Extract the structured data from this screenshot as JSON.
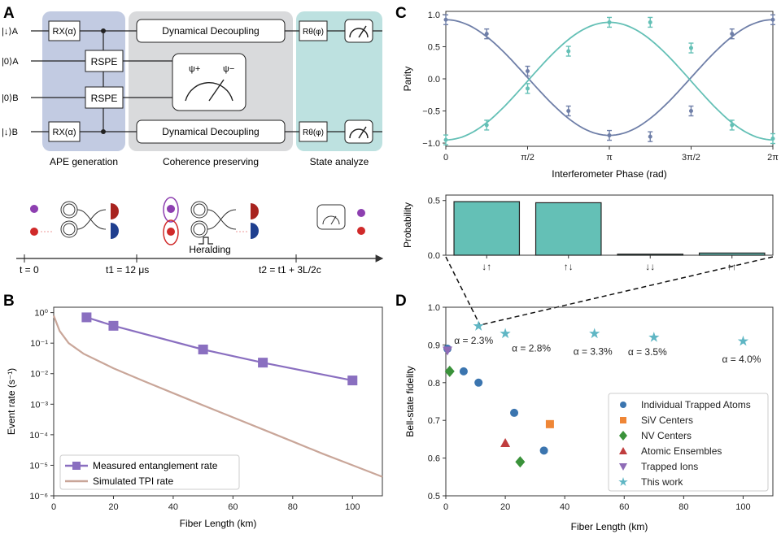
{
  "panels": {
    "A": {
      "letter": "A",
      "inputs": [
        "|↓⟩A",
        "|0⟩A",
        "|0⟩B",
        "|↓⟩B"
      ],
      "gate_rx": "RX(α)",
      "gate_rspe": "RSPE",
      "gate_dd": "Dynamical Decoupling",
      "gate_rtheta": "Rθ(φ)",
      "psi_plus": "ψ+",
      "psi_minus": "ψ−",
      "stage_labels": [
        "APE generation",
        "Coherence preserving",
        "State analyze"
      ],
      "heralding": "Heralding",
      "timeline": [
        "t = 0",
        "t1 = 12 μs",
        "t2 = t1 + 3L/2c"
      ]
    },
    "B": {
      "letter": "B",
      "xlabel": "Fiber Length (km)",
      "ylabel": "Event rate (s⁻¹)",
      "legend": [
        "Measured entanglement rate",
        "Simulated TPI rate"
      ]
    },
    "C": {
      "letter": "C"
    },
    "D": {
      "letter": "D"
    }
  },
  "chart_data": [
    {
      "id": "B",
      "type": "line",
      "yscale": "log",
      "xlabel": "Fiber Length (km)",
      "ylabel": "Event rate (s⁻¹)",
      "xlim": [
        0,
        110
      ],
      "ylim": [
        1e-06,
        1.5
      ],
      "xticks": [
        0,
        20,
        40,
        60,
        80,
        100
      ],
      "yticks": [
        1e-06,
        1e-05,
        0.0001,
        0.001,
        0.01,
        0.1,
        1
      ],
      "ytick_labels": [
        "10⁻⁶",
        "10⁻⁵",
        "10⁻⁴",
        "10⁻³",
        "10⁻²",
        "10⁻¹",
        "10⁰"
      ],
      "series": [
        {
          "name": "Measured entanglement rate",
          "color": "#8a6fc0",
          "marker": "square",
          "x": [
            11,
            20,
            50,
            70,
            100
          ],
          "y": [
            0.7,
            0.37,
            0.062,
            0.023,
            0.006
          ]
        },
        {
          "name": "Simulated TPI rate",
          "color": "#c9a699",
          "marker": "none",
          "x": [
            0,
            2,
            5,
            10,
            20,
            30,
            40,
            50,
            60,
            70,
            80,
            90,
            100,
            110
          ],
          "y": [
            0.8,
            0.25,
            0.1,
            0.045,
            0.015,
            0.0058,
            0.0023,
            0.00092,
            0.00037,
            0.00015,
            6e-05,
            2.4e-05,
            1e-05,
            4.2e-06
          ]
        }
      ],
      "legend_position": "lower-left"
    },
    {
      "id": "C-parity",
      "type": "line",
      "xlabel": "Interferometer Phase (rad)",
      "ylabel": "Parity",
      "xlim": [
        0,
        6.2832
      ],
      "ylim": [
        -1.05,
        1.05
      ],
      "xticks": [
        0,
        1.5708,
        3.1416,
        4.7124,
        6.2832
      ],
      "xtick_labels": [
        "0",
        "π/2",
        "π",
        "3π/2",
        "2π"
      ],
      "yticks": [
        -1.0,
        -0.5,
        0.0,
        0.5,
        1.0
      ],
      "ytick_labels": [
        "−1.0",
        "−0.5",
        "0.0",
        "0.5",
        "1.0"
      ],
      "series": [
        {
          "name": "parity-blue",
          "color": "#6f7fa8",
          "x": [
            0,
            0.785,
            1.571,
            2.356,
            3.142,
            3.927,
            4.712,
            5.498,
            6.283
          ],
          "y": [
            0.92,
            0.7,
            0.12,
            -0.5,
            -0.88,
            -0.9,
            -0.5,
            0.7,
            0.92
          ]
        },
        {
          "name": "parity-teal",
          "color": "#64c0b6",
          "x": [
            0,
            0.785,
            1.571,
            2.356,
            3.142,
            3.927,
            4.712,
            5.498,
            6.283
          ],
          "y": [
            -0.95,
            -0.72,
            -0.15,
            0.43,
            0.88,
            0.88,
            0.48,
            -0.72,
            -0.93
          ]
        }
      ]
    },
    {
      "id": "C-probability",
      "type": "bar",
      "ylabel": "Probability",
      "categories": [
        "↓↑",
        "↑↓",
        "↓↓",
        "↑↑"
      ],
      "values": [
        0.49,
        0.48,
        0.01,
        0.02
      ],
      "ylim": [
        0,
        0.55
      ],
      "yticks": [
        0,
        0.5
      ],
      "ytick_labels": [
        "0.0",
        "0.5"
      ],
      "color": "#64c0b6"
    },
    {
      "id": "D",
      "type": "scatter",
      "xlabel": "Fiber Length (km)",
      "ylabel": "Bell-state fidelity",
      "xlim": [
        0,
        110
      ],
      "ylim": [
        0.5,
        1.0
      ],
      "xticks": [
        0,
        20,
        40,
        60,
        80,
        100
      ],
      "yticks": [
        0.5,
        0.6,
        0.7,
        0.8,
        0.9,
        1.0
      ],
      "series": [
        {
          "name": "Individual Trapped Atoms",
          "color": "#3b75af",
          "marker": "circle",
          "x": [
            0,
            6,
            11,
            23,
            33
          ],
          "y": [
            0.89,
            0.83,
            0.8,
            0.72,
            0.62
          ]
        },
        {
          "name": "SiV Centers",
          "color": "#ef8636",
          "marker": "square",
          "x": [
            35
          ],
          "y": [
            0.69
          ]
        },
        {
          "name": "NV Centers",
          "color": "#3a923a",
          "marker": "diamond",
          "x": [
            1.3,
            25
          ],
          "y": [
            0.83,
            0.59
          ]
        },
        {
          "name": "Atomic Ensembles",
          "color": "#c03d3e",
          "marker": "triangle-up",
          "x": [
            20
          ],
          "y": [
            0.64
          ]
        },
        {
          "name": "Trapped Ions",
          "color": "#8e6bb6",
          "marker": "triangle-down",
          "x": [
            0
          ],
          "y": [
            0.885
          ]
        },
        {
          "name": "This work",
          "color": "#5fb6c4",
          "marker": "star",
          "x": [
            11,
            20,
            50,
            70,
            100
          ],
          "y": [
            0.95,
            0.93,
            0.93,
            0.92,
            0.91
          ],
          "labels": [
            "α = 2.3%",
            "α = 2.8%",
            "α = 3.3%",
            "α = 3.5%",
            "α = 4.0%"
          ]
        }
      ],
      "legend_position": "lower-right"
    }
  ]
}
